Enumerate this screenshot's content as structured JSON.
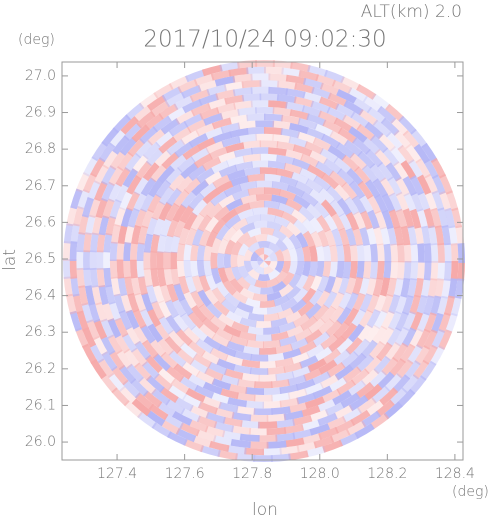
{
  "chart_data": {
    "type": "radar-ppi",
    "title": "2017/10/24 09:02:30",
    "subtitle": "ALT(km) 2.0",
    "y_unit": "(deg)",
    "x_unit": "(deg)",
    "ylabel": "lat",
    "xlabel": "lon",
    "xlim": [
      127.237,
      128.424
    ],
    "ylim": [
      25.951,
      27.038
    ],
    "xticks": [
      127.4,
      127.6,
      127.8,
      {
        "value": 128.0,
        "label": "128.0"
      },
      128.2,
      128.4
    ],
    "yticks": [
      {
        "value": 26.0,
        "label": "26.0"
      },
      26.1,
      26.2,
      26.3,
      26.4,
      26.5,
      26.6,
      26.7,
      26.8,
      26.9,
      {
        "value": 27.0,
        "label": "27.0"
      }
    ],
    "colors": [
      "#f6a9a9",
      "#b4b6f6"
    ]
  }
}
